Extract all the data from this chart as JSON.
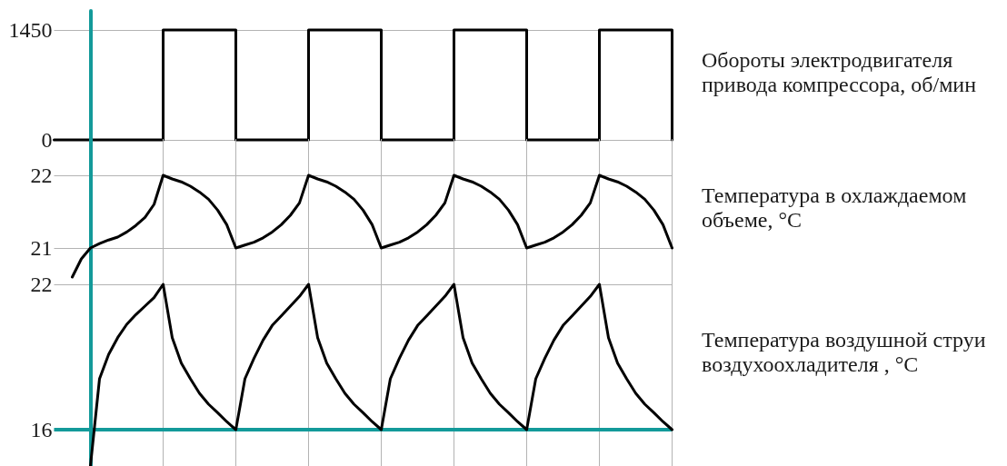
{
  "chart_data": [
    {
      "type": "step",
      "ylabel": "Обороты электродвигателя привода компрессора, об/мин",
      "categories": [
        null,
        null,
        null,
        null,
        null,
        null,
        null,
        null,
        null,
        null,
        null,
        null,
        null,
        null,
        null,
        null,
        null,
        null,
        null,
        null,
        null,
        null,
        null,
        null,
        null,
        null,
        null,
        null,
        null,
        null,
        null,
        null,
        null,
        null,
        null,
        null,
        null,
        null,
        null,
        null,
        null,
        null,
        null,
        null,
        null,
        null,
        null,
        null,
        null,
        null,
        null,
        null,
        null,
        null,
        null,
        null,
        null,
        null,
        null,
        null,
        null,
        null,
        null,
        null,
        null,
        null,
        null,
        null,
        null
      ],
      "values": [
        0,
        0,
        0,
        0,
        0,
        0,
        0,
        0,
        0,
        0,
        0,
        0,
        1450,
        1450,
        1450,
        1450,
        1450,
        1450,
        1450,
        1450,
        0,
        0,
        0,
        0,
        0,
        0,
        0,
        0,
        1450,
        1450,
        1450,
        1450,
        1450,
        1450,
        1450,
        1450,
        0,
        0,
        0,
        0,
        0,
        0,
        0,
        0,
        1450,
        1450,
        1450,
        1450,
        1450,
        1450,
        1450,
        1450,
        0,
        0,
        0,
        0,
        0,
        0,
        0,
        0,
        1450,
        1450,
        1450,
        1450,
        1450,
        1450,
        1450,
        1450,
        0
      ],
      "color": "#000000",
      "ylim": [
        0,
        1700
      ],
      "yticks": [
        0,
        1450
      ],
      "grid": "y",
      "tick_labels": "y",
      "marker": "none",
      "line_style": "solid"
    },
    {
      "type": "line",
      "ylabel": "Температура в охлаждаемом объеме, °C",
      "categories": [
        null,
        null,
        null,
        null,
        null,
        null,
        null,
        null,
        null,
        null,
        null,
        null,
        null,
        null,
        null,
        null,
        null,
        null,
        null,
        null,
        null,
        null,
        null,
        null,
        null,
        null,
        null,
        null,
        null,
        null,
        null,
        null,
        null,
        null,
        null,
        null,
        null,
        null,
        null,
        null,
        null,
        null,
        null,
        null,
        null,
        null,
        null,
        null,
        null,
        null,
        null,
        null,
        null,
        null,
        null,
        null,
        null,
        null,
        null,
        null,
        null,
        null,
        null,
        null,
        null,
        null,
        null,
        null,
        null
      ],
      "values": [
        null,
        null,
        20.6,
        20.85,
        21.0,
        21.06,
        21.11,
        21.15,
        21.22,
        21.31,
        21.42,
        21.6,
        22.0,
        21.95,
        21.91,
        21.85,
        21.77,
        21.67,
        21.52,
        21.32,
        21.0,
        21.04,
        21.08,
        21.14,
        21.22,
        21.32,
        21.45,
        21.62,
        22.0,
        21.95,
        21.91,
        21.85,
        21.77,
        21.67,
        21.52,
        21.32,
        21.0,
        21.04,
        21.08,
        21.14,
        21.22,
        21.32,
        21.45,
        21.62,
        22.0,
        21.95,
        21.91,
        21.85,
        21.77,
        21.67,
        21.52,
        21.32,
        21.0,
        21.04,
        21.08,
        21.14,
        21.22,
        21.32,
        21.45,
        21.62,
        22.0,
        21.95,
        21.91,
        21.85,
        21.77,
        21.67,
        21.52,
        21.32,
        21.0
      ],
      "color": "#000000",
      "ylim": [
        20.5,
        22.5
      ],
      "yticks": [
        21,
        22
      ],
      "grid": true,
      "tick_labels": "y",
      "marker": "none",
      "line_style": "solid"
    },
    {
      "type": "line",
      "ylabel": "Температура воздушной струи воздухоохладителя , °C",
      "categories": [
        null,
        null,
        null,
        null,
        null,
        null,
        null,
        null,
        null,
        null,
        null,
        null,
        null,
        null,
        null,
        null,
        null,
        null,
        null,
        null,
        null,
        null,
        null,
        null,
        null,
        null,
        null,
        null,
        null,
        null,
        null,
        null,
        null,
        null,
        null,
        null,
        null,
        null,
        null,
        null,
        null,
        null,
        null,
        null,
        null,
        null,
        null,
        null,
        null,
        null,
        null,
        null,
        null,
        null,
        null,
        null,
        null,
        null,
        null,
        null,
        null,
        null,
        null,
        null,
        null,
        null,
        null,
        null,
        null
      ],
      "values": [
        null,
        null,
        null,
        null,
        14.5,
        18.1,
        19.1,
        19.8,
        20.35,
        20.75,
        21.1,
        21.45,
        22.0,
        19.8,
        18.75,
        18.1,
        17.5,
        17.05,
        16.7,
        16.33,
        16.0,
        18.1,
        18.95,
        19.7,
        20.3,
        20.7,
        21.1,
        21.5,
        22.0,
        19.8,
        18.75,
        18.1,
        17.5,
        17.05,
        16.7,
        16.33,
        16.0,
        18.1,
        18.95,
        19.7,
        20.3,
        20.7,
        21.1,
        21.5,
        22.0,
        19.8,
        18.75,
        18.1,
        17.5,
        17.05,
        16.7,
        16.33,
        16.0,
        18.1,
        18.95,
        19.7,
        20.3,
        20.7,
        21.1,
        21.5,
        22.0,
        19.8,
        18.75,
        18.1,
        17.5,
        17.05,
        16.7,
        16.33,
        16.0
      ],
      "color": "#000000",
      "ylim": [
        14.5,
        22
      ],
      "yticks": [
        16,
        22
      ],
      "grid": true,
      "tick_labels": "y",
      "marker": "none",
      "line_style": "solid",
      "ref_lines": [
        {
          "axis": "y",
          "value": 16,
          "color": "#139a9a"
        }
      ]
    }
  ]
}
